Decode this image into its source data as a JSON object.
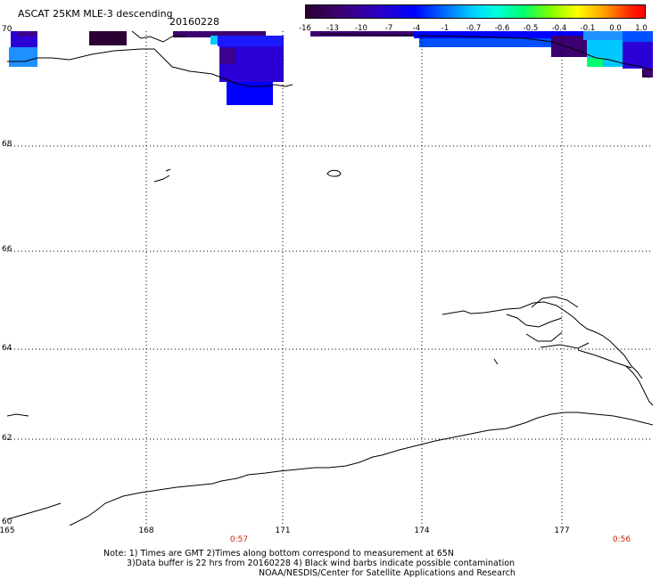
{
  "header": {
    "title": "ASCAT 25KM MLE-3 descending",
    "date": "20160228"
  },
  "colorbar": {
    "ticks": [
      "-16",
      "-13",
      "-10",
      "-7",
      "-4",
      "-1",
      "-0.7",
      "-0.6",
      "-0.5",
      "-0.4",
      "-0.1",
      "0.0",
      "1.0"
    ]
  },
  "axes": {
    "lon_labels": [
      "165",
      "168",
      "171",
      "174",
      "177"
    ],
    "lat_labels": [
      "70",
      "68",
      "66",
      "64",
      "62",
      "60"
    ]
  },
  "times": {
    "left": "0:57",
    "right": "0:56"
  },
  "notes": {
    "line1": "Note: 1) Times are GMT 2)Times along bottom correspond to measurement at 65N",
    "line2": "3)Data buffer is 22 hrs from 20160228 4) Black wind barbs indicate possible contamination",
    "line3": "NOAA/NESDIS/Center for Satellite Applications and Research"
  },
  "colors": {
    "grid": "#000000",
    "coast": "#000000",
    "time_label": "#d02000"
  }
}
